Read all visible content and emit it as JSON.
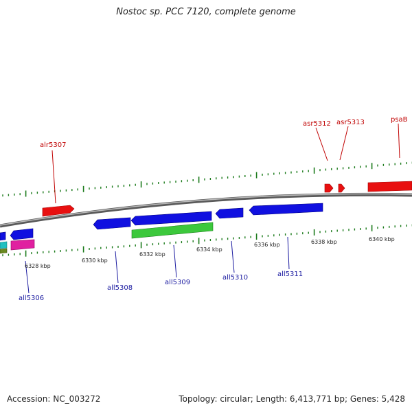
{
  "title": "Nostoc sp. PCC 7120, complete genome",
  "footer": {
    "accession": "Accession: NC_003272",
    "summary": "Topology: circular; Length: 6,413,771 bp; Genes: 5,428"
  },
  "colors": {
    "forward_gene": "#e81010",
    "reverse_gene": "#1010e0",
    "rna_gene": "#3cc83c",
    "pink_gene": "#e020a0",
    "cyan_gene": "#20c0c0",
    "olive_gene": "#6a8a20",
    "backbone": "#8a8a8a",
    "tick": "#1a7a1a",
    "forward_label": "#c00000",
    "reverse_label": "#1a1aa0"
  },
  "tick_labels": [
    "6328 kbp",
    "6330 kbp",
    "6332 kbp",
    "6334 kbp",
    "6336 kbp",
    "6338 kbp",
    "6340 kbp"
  ],
  "genes": {
    "alr5307": "alr5307",
    "asr5312": "asr5312",
    "asr5313": "asr5313",
    "psaB": "psaB",
    "all5306": "all5306",
    "all5308": "all5308",
    "all5309": "all5309",
    "all5310": "all5310",
    "all5311": "all5311"
  }
}
